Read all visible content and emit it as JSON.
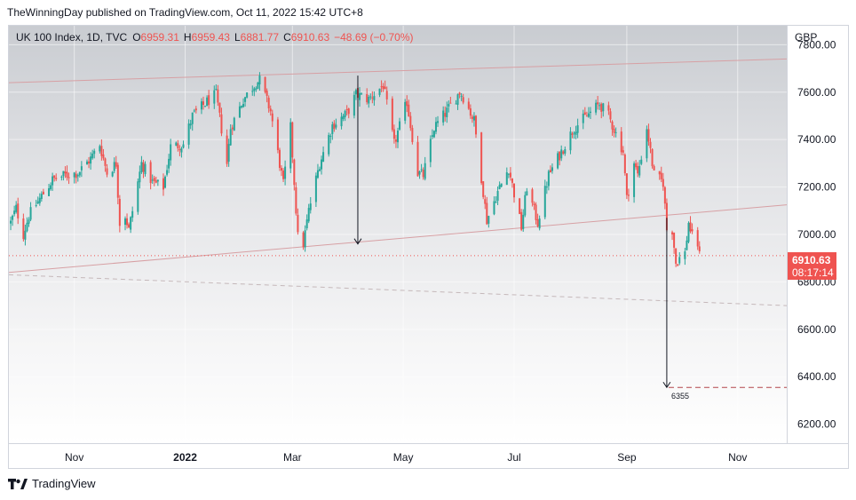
{
  "publisher_line": "TheWinningDay published on TradingView.com, Oct 11, 2022 15:42 UTC+8",
  "legend": {
    "symbol": "UK 100 Index, 1D, TVC",
    "open_label": "O",
    "open": "6959.31",
    "high_label": "H",
    "high": "6959.43",
    "low_label": "L",
    "low": "6881.77",
    "close_label": "C",
    "close": "6910.63",
    "change": "−48.69 (−0.70%)"
  },
  "currency": "GBP",
  "last_price": {
    "price": "6910.63",
    "countdown": "08:17:14"
  },
  "footer_brand": "TradingView",
  "colors": {
    "up": "#26a69a",
    "down": "#ef5350",
    "trendline": "#d7a0a4",
    "target_line": "#b2444a",
    "arrow": "#131722",
    "dashed_support": "#c5b8ba"
  },
  "chart_data": {
    "type": "candlestick",
    "y_axis": {
      "min": 6120,
      "max": 7880,
      "ticks": [
        6200,
        6400,
        6600,
        6800,
        7000,
        7200,
        7400,
        7600,
        7800
      ]
    },
    "y_tick_labels": [
      "6200.00",
      "6400.00",
      "6600.00",
      "6800.00",
      "7000.00",
      "7200.00",
      "7400.00",
      "7600.00",
      "7800.00"
    ],
    "x_axis": {
      "start": "2021-09-26",
      "end": "2022-11-28",
      "labels": [
        {
          "text": "Nov",
          "date": "2021-11-01",
          "bold": false
        },
        {
          "text": "2022",
          "date": "2022-01-01",
          "bold": true
        },
        {
          "text": "Mar",
          "date": "2022-03-01",
          "bold": false
        },
        {
          "text": "May",
          "date": "2022-05-01",
          "bold": false
        },
        {
          "text": "Jul",
          "date": "2022-07-01",
          "bold": false
        },
        {
          "text": "Sep",
          "date": "2022-09-01",
          "bold": false
        },
        {
          "text": "Nov",
          "date": "2022-11-01",
          "bold": false
        }
      ]
    },
    "price_path": [
      [
        "2021-09-27",
        7050
      ],
      [
        "2021-09-30",
        7110
      ],
      [
        "2021-10-04",
        7000
      ],
      [
        "2021-10-07",
        7080
      ],
      [
        "2021-10-13",
        7150
      ],
      [
        "2021-10-20",
        7230
      ],
      [
        "2021-10-27",
        7250
      ],
      [
        "2021-11-03",
        7260
      ],
      [
        "2021-11-10",
        7320
      ],
      [
        "2021-11-15",
        7380
      ],
      [
        "2021-11-19",
        7260
      ],
      [
        "2021-11-24",
        7300
      ],
      [
        "2021-11-26",
        7050
      ],
      [
        "2021-11-29",
        7080
      ],
      [
        "2021-12-01",
        7020
      ],
      [
        "2021-12-08",
        7300
      ],
      [
        "2021-12-14",
        7220
      ],
      [
        "2021-12-20",
        7200
      ],
      [
        "2021-12-24",
        7370
      ],
      [
        "2021-12-31",
        7380
      ],
      [
        "2022-01-05",
        7500
      ],
      [
        "2022-01-13",
        7560
      ],
      [
        "2022-01-18",
        7590
      ],
      [
        "2022-01-24",
        7300
      ],
      [
        "2022-01-26",
        7450
      ],
      [
        "2022-02-02",
        7570
      ],
      [
        "2022-02-09",
        7640
      ],
      [
        "2022-02-11",
        7650
      ],
      [
        "2022-02-17",
        7520
      ],
      [
        "2022-02-24",
        7210
      ],
      [
        "2022-02-28",
        7450
      ],
      [
        "2022-03-04",
        6990
      ],
      [
        "2022-03-07",
        6960
      ],
      [
        "2022-03-10",
        7100
      ],
      [
        "2022-03-16",
        7300
      ],
      [
        "2022-03-23",
        7460
      ],
      [
        "2022-03-31",
        7510
      ],
      [
        "2022-04-05",
        7590
      ],
      [
        "2022-04-12",
        7570
      ],
      [
        "2022-04-20",
        7630
      ],
      [
        "2022-04-26",
        7380
      ],
      [
        "2022-05-03",
        7560
      ],
      [
        "2022-05-09",
        7260
      ],
      [
        "2022-05-12",
        7250
      ],
      [
        "2022-05-18",
        7450
      ],
      [
        "2022-05-25",
        7520
      ],
      [
        "2022-06-01",
        7600
      ],
      [
        "2022-06-03",
        7580
      ],
      [
        "2022-06-09",
        7480
      ],
      [
        "2022-06-16",
        7060
      ],
      [
        "2022-06-22",
        7180
      ],
      [
        "2022-06-28",
        7280
      ],
      [
        "2022-07-05",
        7030
      ],
      [
        "2022-07-08",
        7200
      ],
      [
        "2022-07-14",
        7050
      ],
      [
        "2022-07-20",
        7250
      ],
      [
        "2022-07-27",
        7350
      ],
      [
        "2022-08-03",
        7450
      ],
      [
        "2022-08-10",
        7500
      ],
      [
        "2022-08-17",
        7550
      ],
      [
        "2022-08-22",
        7500
      ],
      [
        "2022-08-30",
        7350
      ],
      [
        "2022-09-01",
        7150
      ],
      [
        "2022-09-05",
        7300
      ],
      [
        "2022-09-07",
        7250
      ],
      [
        "2022-09-12",
        7450
      ],
      [
        "2022-09-16",
        7250
      ],
      [
        "2022-09-21",
        7220
      ],
      [
        "2022-09-23",
        7020
      ],
      [
        "2022-09-26",
        7020
      ],
      [
        "2022-09-28",
        6880
      ],
      [
        "2022-09-30",
        6900
      ],
      [
        "2022-10-03",
        6920
      ],
      [
        "2022-10-05",
        7050
      ],
      [
        "2022-10-07",
        6990
      ],
      [
        "2022-10-10",
        6960
      ],
      [
        "2022-10-11",
        6910
      ]
    ],
    "annotations": [
      {
        "type": "trendline",
        "name": "upper-channel-line",
        "from": [
          "2021-09-26",
          7640
        ],
        "to": [
          "2022-11-28",
          7740
        ]
      },
      {
        "type": "trendline",
        "name": "lower-channel-line",
        "from": [
          "2021-09-26",
          6840
        ],
        "to": [
          "2022-11-28",
          7125
        ]
      },
      {
        "type": "dashed-line",
        "name": "long-term-support-line",
        "from": [
          "2021-09-26",
          6830
        ],
        "to": [
          "2022-11-28",
          6700
        ]
      },
      {
        "type": "horizontal-dotted",
        "name": "last-price-line",
        "y": 6910.63
      },
      {
        "type": "arrow",
        "name": "measured-move-arrow-1",
        "from": [
          "2022-04-06",
          7670
        ],
        "to": [
          "2022-04-06",
          6960
        ]
      },
      {
        "type": "arrow",
        "name": "measured-move-arrow-2",
        "from": [
          "2022-09-23",
          7070
        ],
        "to": [
          "2022-09-23",
          6355
        ]
      },
      {
        "type": "horizontal-dashed",
        "name": "target-line",
        "y": 6355,
        "from": "2022-09-24",
        "label": "6355"
      }
    ]
  }
}
